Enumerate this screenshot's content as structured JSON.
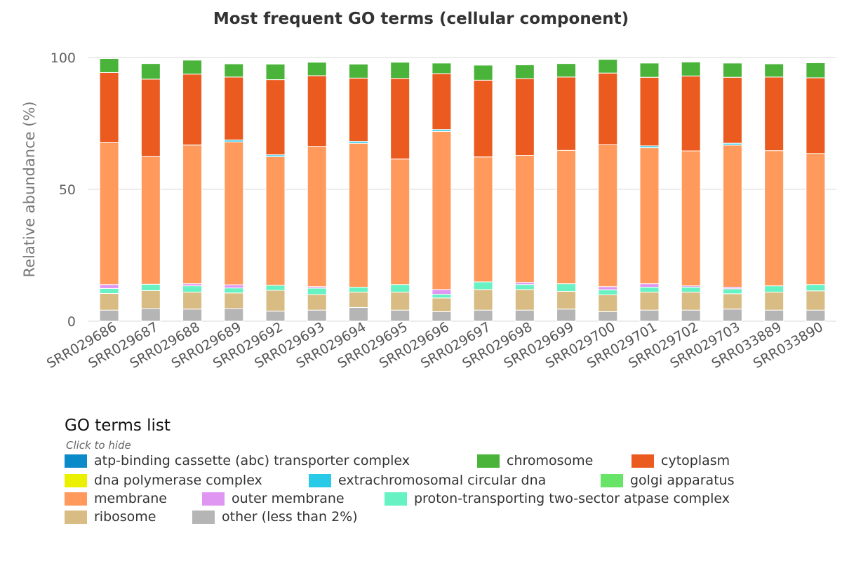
{
  "chart_data": {
    "type": "bar",
    "stacked": true,
    "title": "Most frequent GO terms (cellular component)",
    "xlabel": "",
    "ylabel": "Relative abundance (%)",
    "ylim": [
      0,
      100
    ],
    "yticks": [
      "0",
      "50",
      "100"
    ],
    "grid": true,
    "categories": [
      "SRR029686",
      "SRR029687",
      "SRR029688",
      "SRR029689",
      "SRR029692",
      "SRR029693",
      "SRR029694",
      "SRR029695",
      "SRR029696",
      "SRR029697",
      "SRR029698",
      "SRR029699",
      "SRR029700",
      "SRR029701",
      "SRR029702",
      "SRR029703",
      "SRR033889",
      "SRR033890"
    ],
    "series": [
      {
        "name": "other (less than 2%)",
        "color": "#b5b5b5",
        "values": [
          4.2,
          4.8,
          4.6,
          4.8,
          3.8,
          4.2,
          5.2,
          4.2,
          3.6,
          4.2,
          4.2,
          4.6,
          3.6,
          4.2,
          4.2,
          4.6,
          4.2,
          4.2
        ]
      },
      {
        "name": "ribosome",
        "color": "#d9bc84",
        "values": [
          6.3,
          6.8,
          6.4,
          5.9,
          7.9,
          5.9,
          5.8,
          6.8,
          5.2,
          7.8,
          7.8,
          6.7,
          6.4,
          6.8,
          6.8,
          5.8,
          6.8,
          7.3
        ]
      },
      {
        "name": "proton-transporting two-sector atpase complex",
        "color": "#66f2c2",
        "values": [
          1.9,
          2.4,
          2.4,
          1.9,
          1.9,
          2.4,
          1.9,
          2.9,
          1.4,
          2.9,
          1.9,
          2.9,
          1.9,
          1.9,
          1.9,
          1.9,
          2.4,
          2.4
        ]
      },
      {
        "name": "outer membrane",
        "color": "#df96f2",
        "values": [
          1.5,
          0,
          0.8,
          1.2,
          0,
          0.6,
          0,
          0,
          1.8,
          0,
          0.8,
          0,
          1.2,
          1.3,
          0.5,
          0.6,
          0,
          0
        ]
      },
      {
        "name": "membrane",
        "color": "#ff9a5c",
        "values": [
          53.8,
          48.4,
          52.6,
          54.2,
          48.8,
          53.2,
          54.6,
          47.6,
          60.0,
          47.4,
          48.2,
          50.6,
          53.8,
          51.6,
          51.2,
          53.9,
          51.3,
          49.7
        ]
      },
      {
        "name": "extrachromosomal circular dna",
        "color": "#29c9e8",
        "values": [
          0,
          0,
          0,
          0.7,
          0.7,
          0,
          0.7,
          0,
          0.7,
          0,
          0,
          0,
          0,
          0.7,
          0,
          0.7,
          0,
          0
        ]
      },
      {
        "name": "cytoplasm",
        "color": "#eb5a1e",
        "values": [
          26.6,
          29.4,
          26.9,
          23.9,
          28.5,
          26.8,
          24.0,
          30.6,
          21.2,
          29.1,
          29.1,
          27.8,
          27.2,
          26.0,
          28.4,
          25.0,
          27.9,
          28.7
        ]
      },
      {
        "name": "chromosome",
        "color": "#4ab43a",
        "values": [
          5.3,
          5.9,
          5.3,
          5.0,
          5.9,
          5.1,
          5.3,
          6.1,
          4.0,
          5.7,
          5.2,
          5.1,
          5.2,
          5.4,
          5.3,
          5.4,
          5.0,
          5.7
        ]
      }
    ]
  },
  "legend": {
    "title": "GO terms list",
    "subtitle": "Click to hide",
    "items": [
      {
        "label": "atp-binding cassette (abc) transporter complex",
        "color": "#0a8ac8"
      },
      {
        "label": "chromosome",
        "color": "#4ab43a"
      },
      {
        "label": "cytoplasm",
        "color": "#eb5a1e"
      },
      {
        "label": "dna polymerase complex",
        "color": "#eaf000"
      },
      {
        "label": "extrachromosomal circular dna",
        "color": "#29c9e8"
      },
      {
        "label": "golgi apparatus",
        "color": "#68e468"
      },
      {
        "label": "membrane",
        "color": "#ff9a5c"
      },
      {
        "label": "outer membrane",
        "color": "#df96f2"
      },
      {
        "label": "proton-transporting two-sector atpase complex",
        "color": "#66f2c2"
      },
      {
        "label": "ribosome",
        "color": "#d9bc84"
      },
      {
        "label": "other (less than 2%)",
        "color": "#b5b5b5"
      }
    ]
  }
}
